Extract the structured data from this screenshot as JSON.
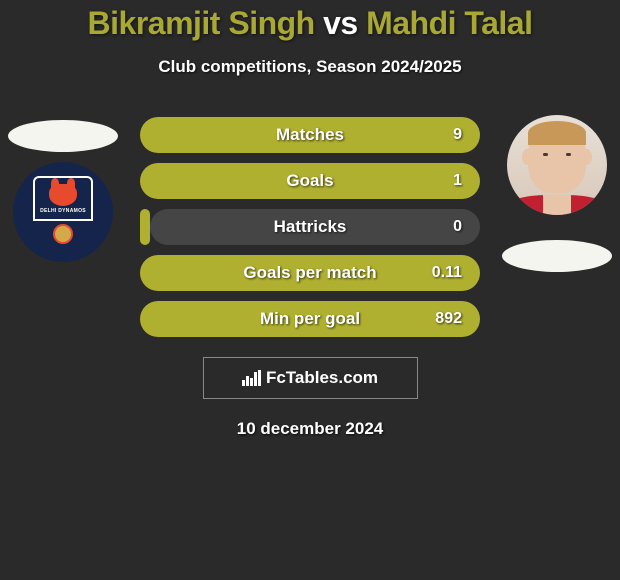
{
  "title": {
    "player1": "Bikramjit Singh",
    "vs": "vs",
    "player2": "Mahdi Talal"
  },
  "subtitle": "Club competitions, Season 2024/2025",
  "club_name": "DELHI DYNAMOS",
  "stats": [
    {
      "label": "Matches",
      "value": "9",
      "fill_pct": 100
    },
    {
      "label": "Goals",
      "value": "1",
      "fill_pct": 100
    },
    {
      "label": "Hattricks",
      "value": "0",
      "fill_pct": 3
    },
    {
      "label": "Goals per match",
      "value": "0.11",
      "fill_pct": 100
    },
    {
      "label": "Min per goal",
      "value": "892",
      "fill_pct": 100
    }
  ],
  "brand": "FcTables.com",
  "date": "10 december 2024",
  "colors": {
    "accent": "#b0b030",
    "bar_bg": "#454545",
    "page_bg": "#2a2a2a",
    "club_bg": "#14244a"
  }
}
